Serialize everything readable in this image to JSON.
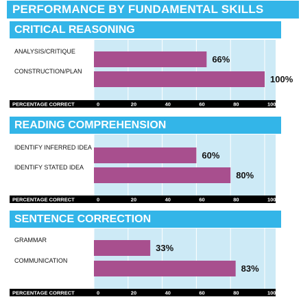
{
  "title": "PERFORMANCE BY FUNDAMENTAL SKILLS",
  "colors": {
    "header": "#33b5e8",
    "bar": "#a84f8e",
    "plot_bg": "#cdeaf6",
    "grid": "#ffffff",
    "axis_strip": "#000000"
  },
  "chart_data": [
    {
      "type": "bar",
      "orientation": "horizontal",
      "title": "CRITICAL REASONING",
      "xlabel": "PERCENTAGE CORRECT",
      "categories": [
        "ANALYSIS/CRITIQUE",
        "CONSTRUCTION/PLAN"
      ],
      "values": [
        66,
        100
      ],
      "value_labels": [
        "66%",
        "100%"
      ],
      "xlim": [
        0,
        100
      ],
      "ticks": [
        "0",
        "20",
        "40",
        "60",
        "80",
        "100"
      ],
      "grid": true
    },
    {
      "type": "bar",
      "orientation": "horizontal",
      "title": "READING COMPREHENSION",
      "xlabel": "PERCENTAGE CORRECT",
      "categories": [
        "IDENTIFY INFERRED IDEA",
        "IDENTIFY STATED IDEA"
      ],
      "values": [
        60,
        80
      ],
      "value_labels": [
        "60%",
        "80%"
      ],
      "xlim": [
        0,
        100
      ],
      "ticks": [
        "0",
        "20",
        "40",
        "60",
        "80",
        "100"
      ],
      "grid": true
    },
    {
      "type": "bar",
      "orientation": "horizontal",
      "title": "SENTENCE CORRECTION",
      "xlabel": "PERCENTAGE CORRECT",
      "categories": [
        "GRAMMAR",
        "COMMUNICATION"
      ],
      "values": [
        33,
        83
      ],
      "value_labels": [
        "33%",
        "83%"
      ],
      "xlim": [
        0,
        100
      ],
      "ticks": [
        "0",
        "20",
        "40",
        "60",
        "80",
        "100"
      ],
      "grid": true
    }
  ]
}
